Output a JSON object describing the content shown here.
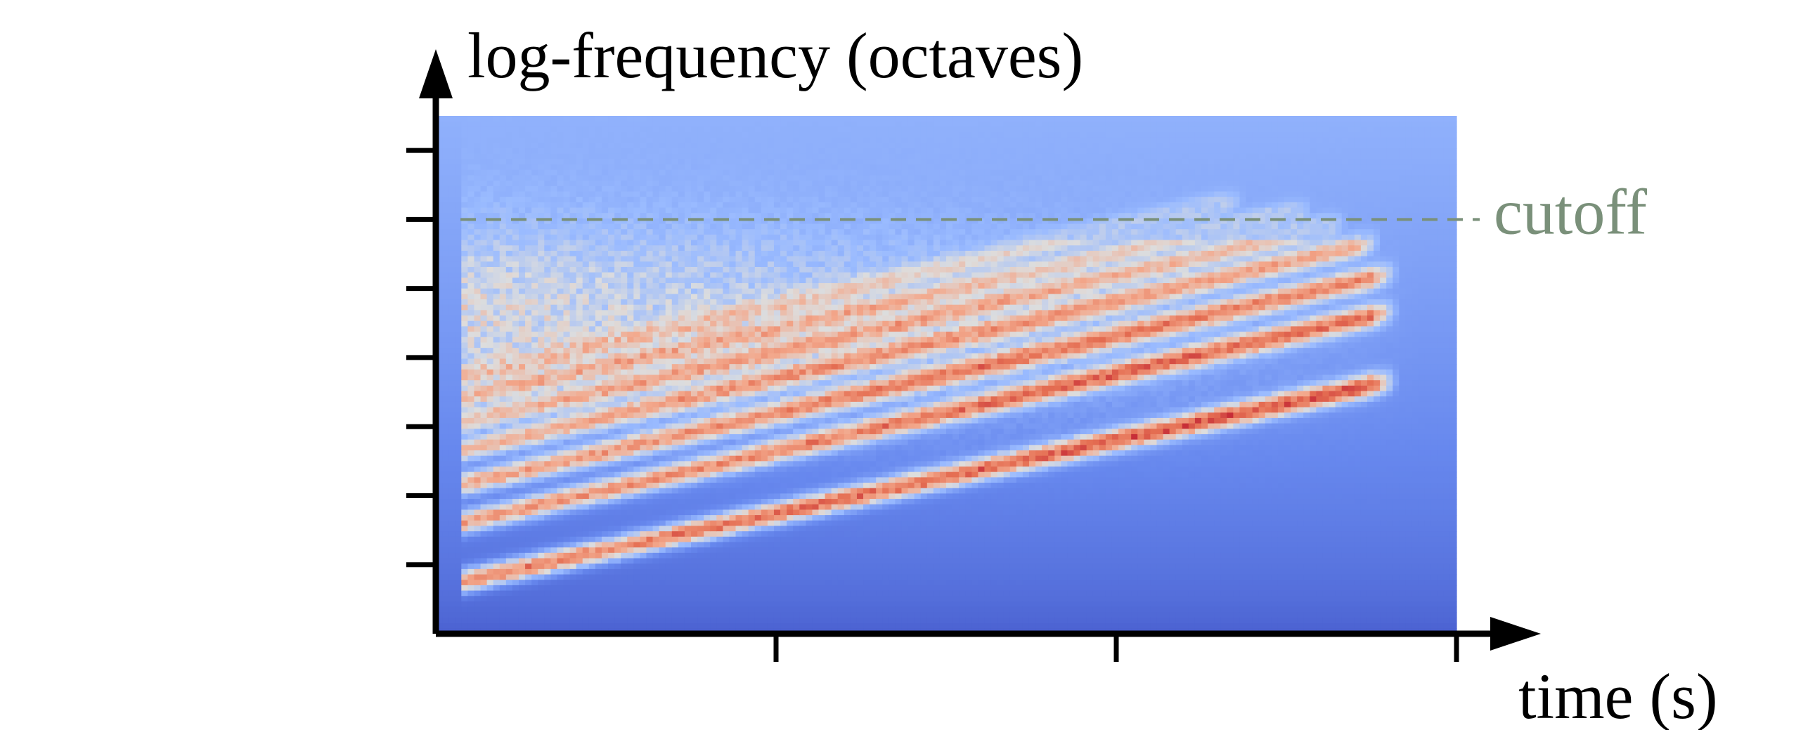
{
  "chart_data": {
    "type": "heatmap",
    "title": "",
    "ylabel": "log-frequency (octaves)",
    "xlabel": "time (s)",
    "ylim": [
      0,
      7.5
    ],
    "xlim": [
      0,
      3
    ],
    "y_ticks_count": 7,
    "x_ticks_count": 3,
    "colormap": "coolwarm",
    "cutoff": {
      "label": "cutoff",
      "y": 6.0,
      "color": "#7a907a"
    },
    "harmonics": [
      {
        "y_start": 0.75,
        "y_end": 3.6,
        "x_end": 2.75,
        "intensity": 1.0
      },
      {
        "y_start": 1.6,
        "y_end": 4.6,
        "x_end": 2.75,
        "intensity": 0.85
      },
      {
        "y_start": 2.15,
        "y_end": 5.15,
        "x_end": 2.75,
        "intensity": 0.75
      },
      {
        "y_start": 2.65,
        "y_end": 5.6,
        "x_end": 2.7,
        "intensity": 0.6
      },
      {
        "y_start": 3.05,
        "y_end": 5.85,
        "x_end": 2.6,
        "intensity": 0.5
      },
      {
        "y_start": 3.4,
        "y_end": 6.05,
        "x_end": 2.5,
        "intensity": 0.4
      },
      {
        "y_start": 3.7,
        "y_end": 6.2,
        "x_end": 2.3,
        "intensity": 0.3
      }
    ]
  }
}
